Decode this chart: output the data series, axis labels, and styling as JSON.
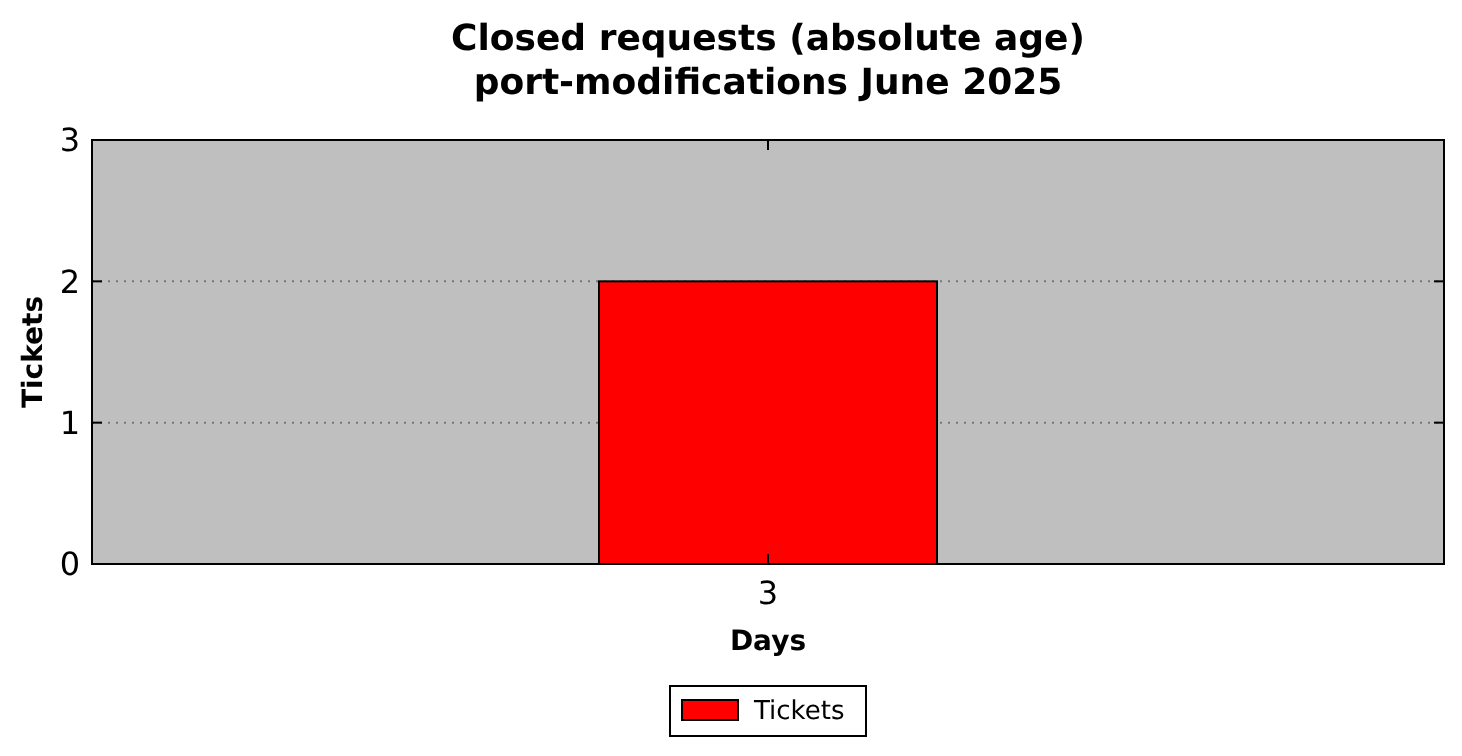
{
  "chart_data": {
    "type": "bar",
    "title": "Closed requests (absolute age)\nport-modifications June 2025",
    "xlabel": "Days",
    "ylabel": "Tickets",
    "categories": [
      "3"
    ],
    "series": [
      {
        "name": "Tickets",
        "color": "#ff0000",
        "values": [
          2
        ]
      }
    ],
    "ylim": [
      0,
      3
    ],
    "yticks": [
      0,
      1,
      2,
      3
    ],
    "grid": "y",
    "legend": "bottom"
  }
}
